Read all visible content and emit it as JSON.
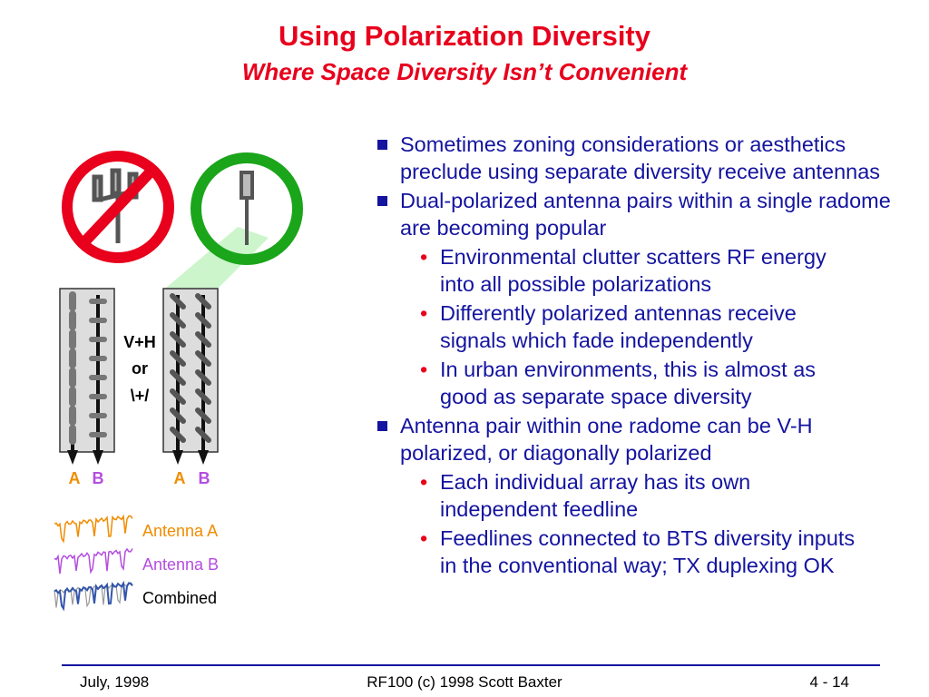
{
  "header": {
    "title": "Using Polarization Diversity",
    "subtitle": "Where Space Diversity Isn’t Convenient"
  },
  "diagram": {
    "polarization": [
      "V+H",
      "or",
      "\\+/"
    ],
    "port_labels": [
      "A",
      "B",
      "A",
      "B"
    ],
    "legend": [
      "Antenna A",
      "Antenna B",
      "Combined"
    ]
  },
  "bullets": [
    {
      "text": "Sometimes  zoning considerations or aesthetics preclude using separate diversity receive antennas",
      "subs": []
    },
    {
      "text": "Dual-polarized antenna pairs within a single radome are becoming popular",
      "subs": [
        "Environmental clutter scatters RF energy into all possible polarizations",
        "Differently polarized antennas receive signals which fade independently",
        "In urban environments, this is almost as good as separate space diversity"
      ]
    },
    {
      "text": "Antenna pair within one radome can be V-H polarized, or diagonally polarized",
      "subs": [
        "Each individual array has its own independent feedline",
        "Feedlines connected to BTS diversity inputs in the conventional way; TX duplexing OK"
      ]
    }
  ],
  "footer": {
    "left": "July, 1998",
    "center": "RF100 (c) 1998 Scott Baxter",
    "right": "4 - 14"
  }
}
